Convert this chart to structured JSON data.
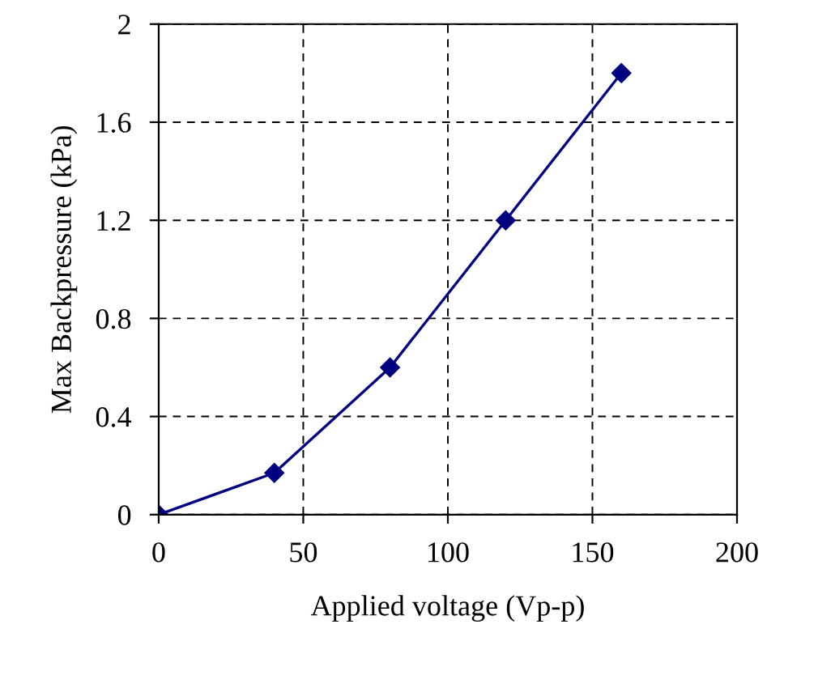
{
  "chart_data": {
    "type": "line",
    "xlabel": "Applied voltage (Vp-p)",
    "ylabel": "Max Backpressure (kPa)",
    "x": [
      0,
      40,
      80,
      120,
      160
    ],
    "series": [
      {
        "color": "#000080",
        "values": [
          0,
          0.17,
          0.6,
          1.2,
          1.8
        ]
      }
    ],
    "xlim": [
      0,
      200
    ],
    "xticks": [
      0,
      50,
      100,
      150,
      200
    ],
    "ylim": [
      0,
      2
    ],
    "yticks": [
      0,
      {
        "value": 0.4,
        "label": "0.4"
      },
      {
        "value": 0.8,
        "label": "0.8"
      },
      {
        "value": 1.2,
        "label": "1.2"
      },
      {
        "value": 1.6,
        "label": "1.6"
      },
      2
    ],
    "grid": true,
    "marker": "diamond",
    "line_style": "solid",
    "legend": false
  }
}
